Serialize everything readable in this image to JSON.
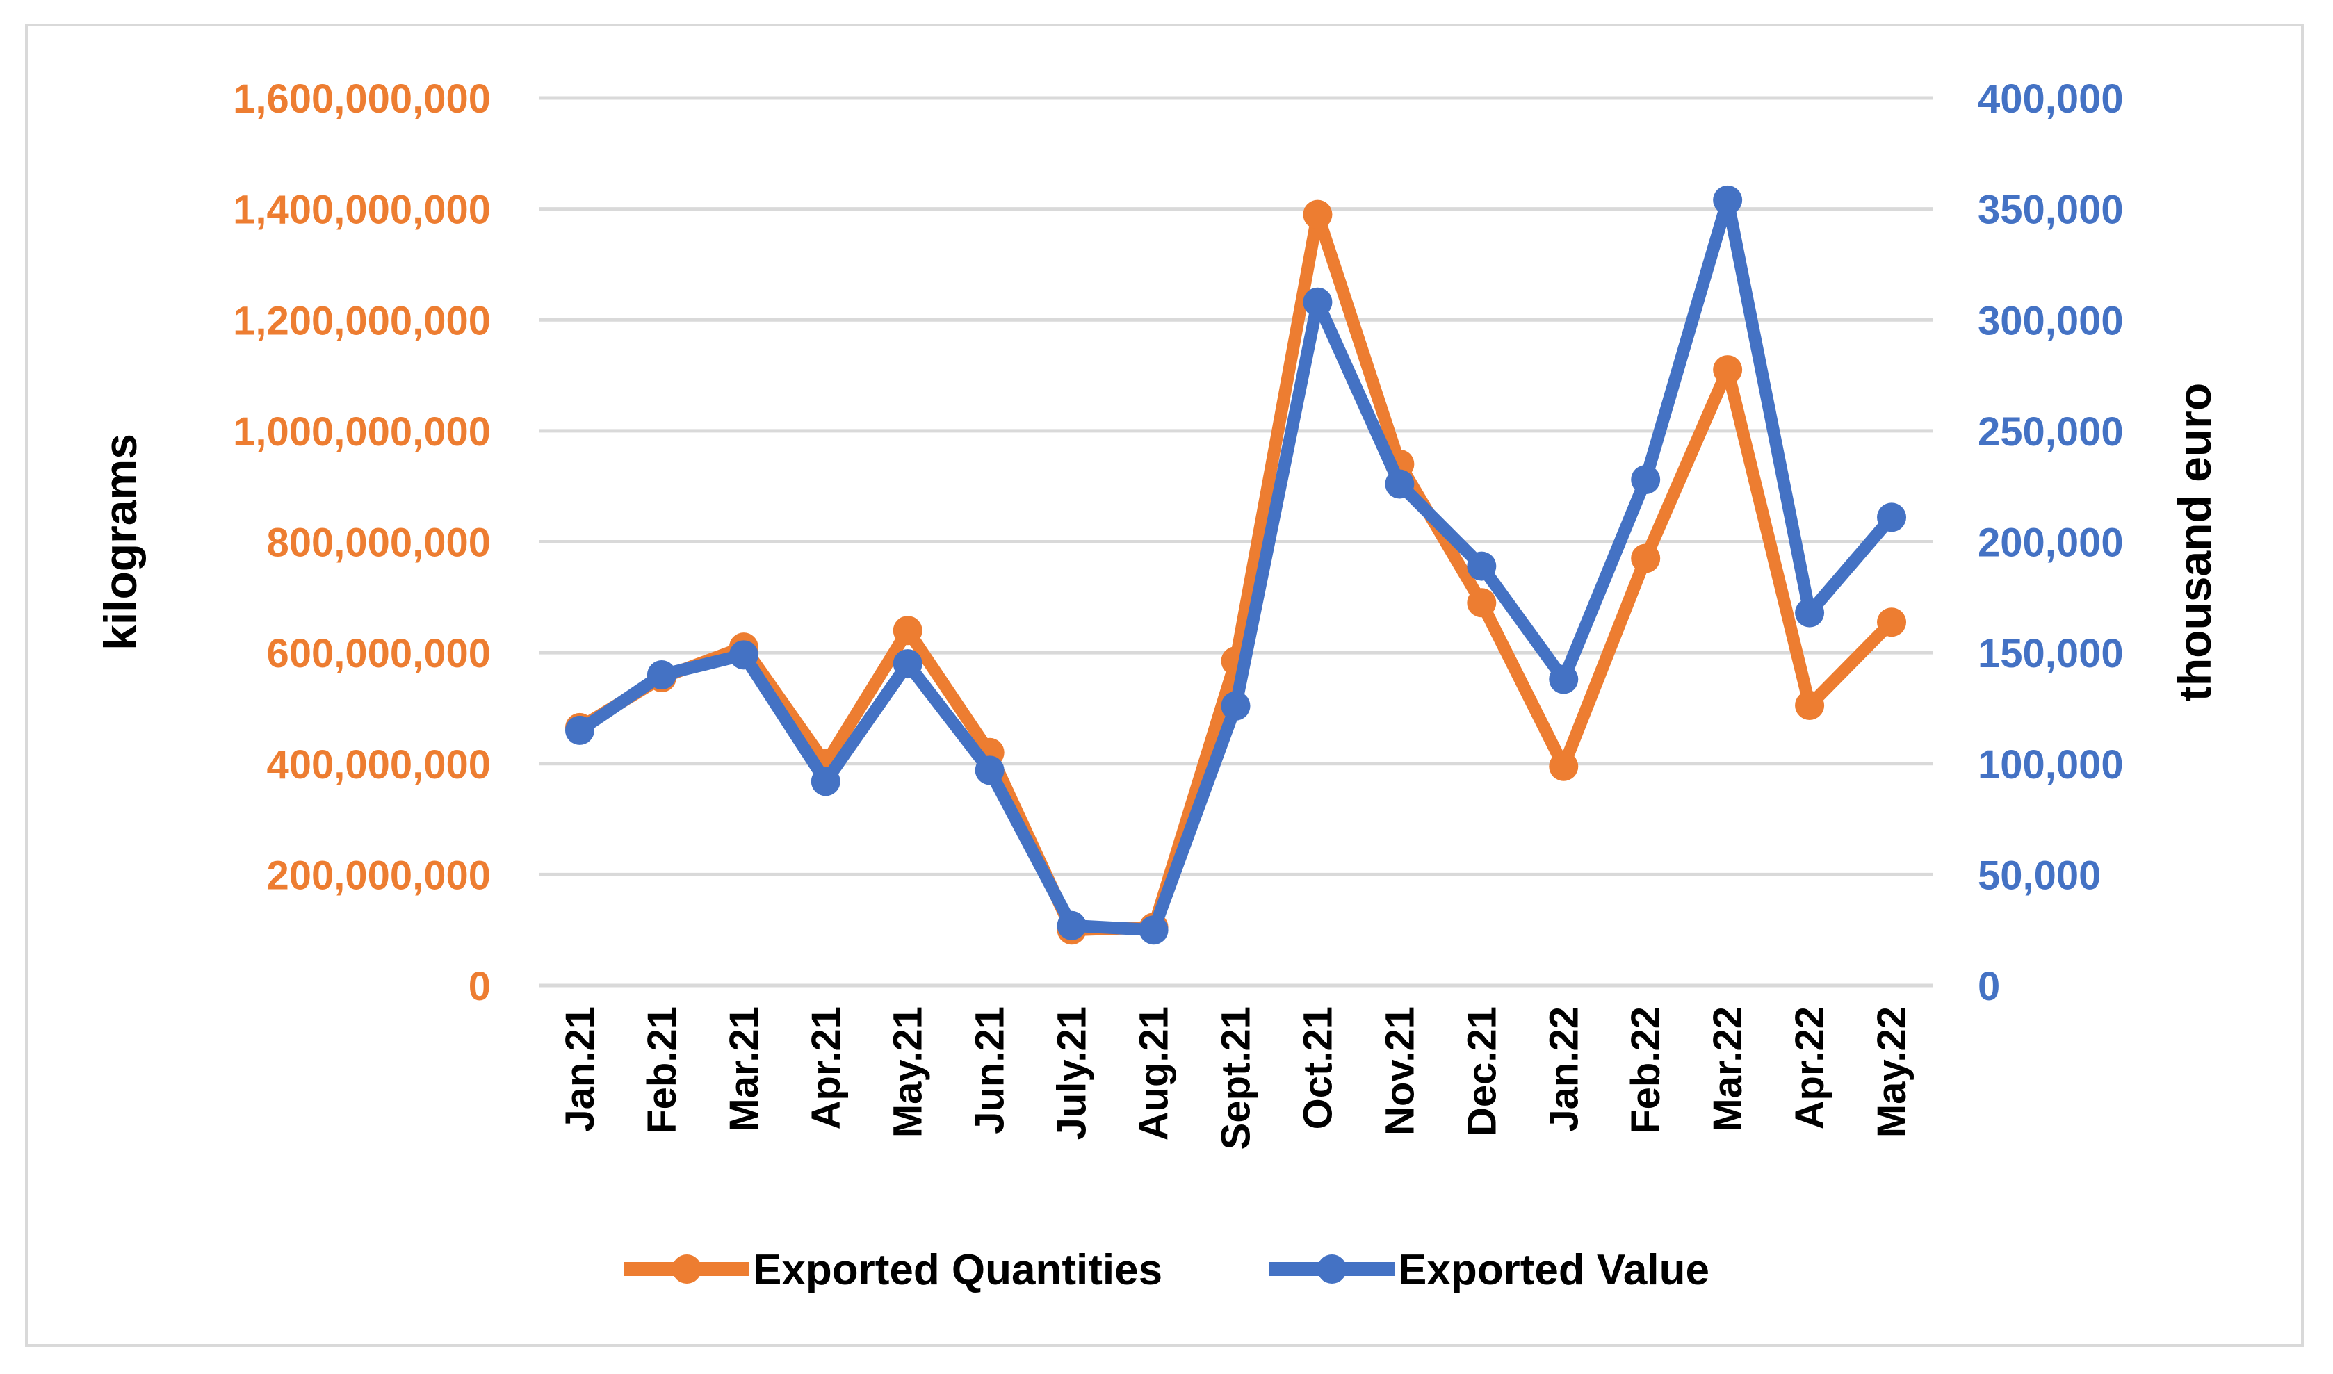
{
  "chart_data": {
    "type": "line",
    "title": "",
    "categories": [
      "Jan.21",
      "Feb.21",
      "Mar.21",
      "Apr.21",
      "May.21",
      "Jun.21",
      "July.21",
      "Aug.21",
      "Sept.21",
      "Oct.21",
      "Nov.21",
      "Dec.21",
      "Jan.22",
      "Feb.22",
      "Mar.22",
      "Apr.22",
      "May.22"
    ],
    "series": [
      {
        "name": "Exported Quantities",
        "axis": "left",
        "color": "#ed7d31",
        "values": [
          465000000,
          555000000,
          610000000,
          400000000,
          640000000,
          420000000,
          100000000,
          105000000,
          585000000,
          1390000000,
          940000000,
          690000000,
          395000000,
          770000000,
          1110000000,
          505000000,
          655000000
        ]
      },
      {
        "name": "Exported Value",
        "axis": "right",
        "color": "#4472c4",
        "values": [
          115000,
          140000,
          149000,
          92000,
          145000,
          97000,
          27000,
          25000,
          126000,
          308000,
          226000,
          189000,
          138000,
          228000,
          354000,
          168000,
          211000
        ]
      }
    ],
    "left_axis": {
      "label": "kilograms",
      "ylim": [
        0,
        1600000000
      ],
      "ticks": [
        "0",
        "200,000,000",
        "400,000,000",
        "600,000,000",
        "800,000,000",
        "1,000,000,000",
        "1,200,000,000",
        "1,400,000,000",
        "1,600,000,000"
      ],
      "color": "#ed7d31"
    },
    "right_axis": {
      "label": "thousand euro",
      "ylim": [
        0,
        400000
      ],
      "ticks": [
        "0",
        "50,000",
        "100,000",
        "150,000",
        "200,000",
        "250,000",
        "300,000",
        "350,000",
        "400,000"
      ],
      "color": "#4472c4"
    },
    "grid": true,
    "legend": "bottom-center"
  }
}
